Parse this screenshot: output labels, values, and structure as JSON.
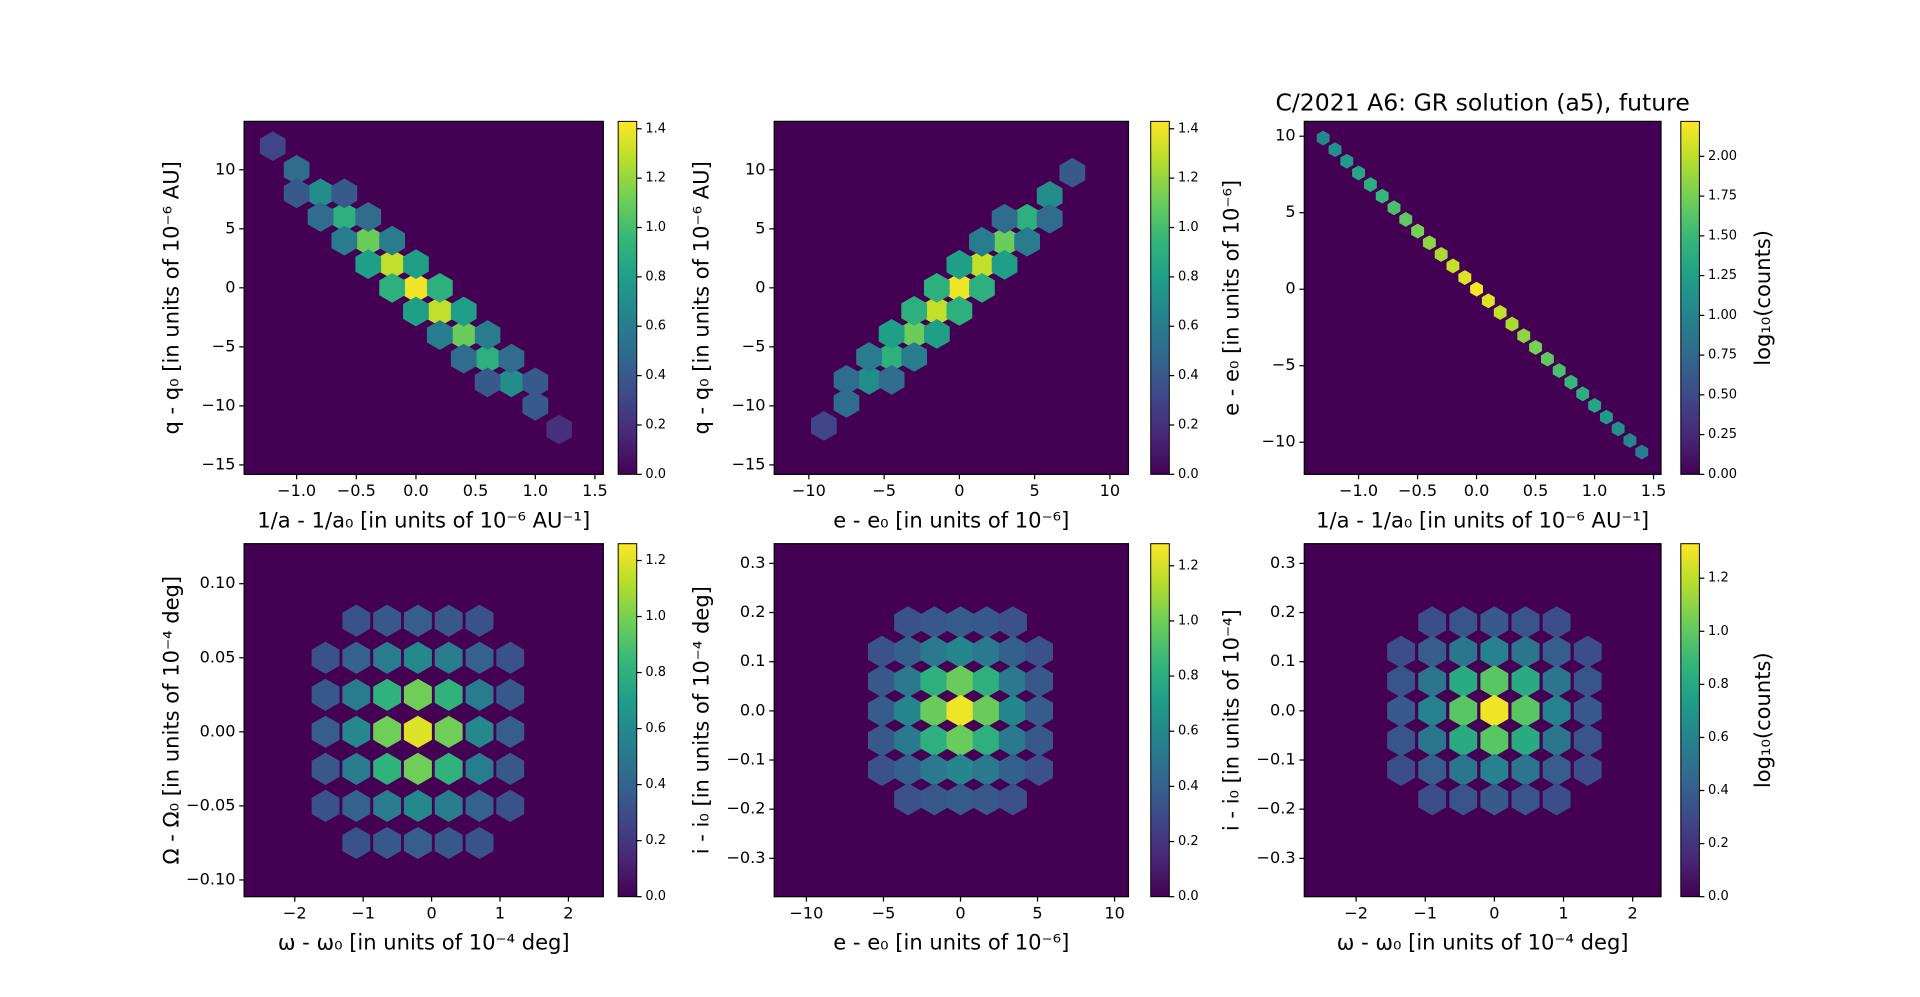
{
  "chart_data": [
    {
      "type": "hexbin",
      "xlabel": "1/a - 1/a₀ [in units of 10⁻⁶ AU⁻¹]",
      "ylabel": "q - q₀ [in units of 10⁻⁶ AU]",
      "xlim": [
        -1.44,
        1.57
      ],
      "ylim": [
        -15.8,
        14.1
      ],
      "xticks": [
        {
          "value": -1,
          "label": "−1.0"
        },
        {
          "value": -0.5,
          "label": "−0.5"
        },
        {
          "value": 0,
          "label": "0.0"
        },
        0.5,
        {
          "value": 1,
          "label": "1.0"
        },
        1.5
      ],
      "yticks": [
        {
          "value": -15,
          "label": "−15"
        },
        {
          "value": -10,
          "label": "−10"
        },
        {
          "value": -5,
          "label": "−5"
        },
        0,
        5,
        10
      ],
      "x": [
        -1.2,
        -1.0,
        -0.8,
        -0.6,
        -0.4,
        -0.2,
        0,
        0.2,
        0.4,
        0.6,
        0.8,
        1.0,
        1.2,
        -1.0,
        -0.8,
        -0.6,
        -0.4,
        -0.2,
        0,
        0.2,
        0.4,
        0.6,
        -0.6,
        -0.4,
        -0.2,
        0,
        0.2,
        0.4,
        0.6,
        0.8,
        1.0
      ],
      "y": [
        12,
        10,
        8,
        6,
        4,
        2,
        0,
        -2,
        -4,
        -6,
        -8,
        -10,
        -12,
        8,
        6,
        4,
        2,
        0,
        -2,
        -4,
        -6,
        -8,
        8,
        6,
        4,
        2,
        0,
        -2,
        -4,
        -6,
        -8
      ],
      "values": [
        0.3,
        0.5,
        0.7,
        0.9,
        1.1,
        1.3,
        1.4,
        1.3,
        1.1,
        0.9,
        0.7,
        0.4,
        0.2,
        0.4,
        0.5,
        0.6,
        0.8,
        0.9,
        0.8,
        0.6,
        0.5,
        0.4,
        0.4,
        0.5,
        0.6,
        0.8,
        0.9,
        0.8,
        0.6,
        0.5,
        0.4
      ],
      "colormap": "viridis",
      "clim": [
        0,
        1.43
      ],
      "cticks": [
        {
          "value": 0,
          "label": "0.0"
        },
        0.2,
        0.4,
        0.6,
        0.8,
        {
          "value": 1,
          "label": "1.0"
        },
        1.2,
        1.4
      ]
    },
    {
      "type": "hexbin",
      "xlabel": "e - e₀ [in units of 10⁻⁶]",
      "ylabel": "q - q₀ [in units of 10⁻⁶ AU]",
      "xlim": [
        -12.3,
        11.23
      ],
      "ylim": [
        -15.8,
        14.1
      ],
      "xticks": [
        {
          "value": -10,
          "label": "−10"
        },
        {
          "value": -5,
          "label": "−5"
        },
        0,
        5,
        10
      ],
      "yticks": [
        {
          "value": -15,
          "label": "−15"
        },
        {
          "value": -10,
          "label": "−10"
        },
        {
          "value": -5,
          "label": "−5"
        },
        0,
        5,
        10
      ],
      "x": [
        -9,
        -7.5,
        -6,
        -4.5,
        -3,
        -1.5,
        0,
        1.5,
        3,
        4.5,
        6,
        7.5,
        -7.5,
        -6,
        -4.5,
        -3,
        -1.5,
        0,
        1.5,
        3,
        -4.5,
        -3,
        -1.5,
        0,
        1.5,
        3,
        4.5,
        6
      ],
      "y": [
        -11.7,
        -9.75,
        -7.8,
        -5.85,
        -3.9,
        -1.95,
        0,
        1.95,
        3.9,
        5.85,
        7.8,
        9.75,
        -7.8,
        -5.85,
        -3.9,
        -1.95,
        0,
        1.95,
        3.9,
        5.85,
        -7.8,
        -5.85,
        -3.9,
        -1.95,
        0,
        1.95,
        3.9,
        5.85
      ],
      "values": [
        0.3,
        0.5,
        0.7,
        0.9,
        1.1,
        1.3,
        1.4,
        1.3,
        1.1,
        0.9,
        0.7,
        0.4,
        0.5,
        0.6,
        0.8,
        0.9,
        0.9,
        0.8,
        0.6,
        0.5,
        0.5,
        0.6,
        0.8,
        0.9,
        0.9,
        0.8,
        0.6,
        0.5
      ],
      "colormap": "viridis",
      "clim": [
        0,
        1.43
      ],
      "cticks": [
        {
          "value": 0,
          "label": "0.0"
        },
        0.2,
        0.4,
        0.6,
        0.8,
        {
          "value": 1,
          "label": "1.0"
        },
        1.2,
        1.4
      ]
    },
    {
      "type": "hexbin",
      "title": "C/2021 A6: GR solution (a5), future",
      "xlabel": "1/a - 1/a₀ [in units of 10⁻⁶ AU⁻¹]",
      "ylabel": "e - e₀ [in units of 10⁻⁶]",
      "xlim": [
        -1.46,
        1.563
      ],
      "ylim": [
        -12.1,
        10.97
      ],
      "xticks": [
        {
          "value": -1,
          "label": "−1.0"
        },
        {
          "value": -0.5,
          "label": "−0.5"
        },
        {
          "value": 0,
          "label": "0.0"
        },
        0.5,
        {
          "value": 1,
          "label": "1.0"
        },
        1.5
      ],
      "yticks": [
        {
          "value": -10,
          "label": "−10"
        },
        {
          "value": -5,
          "label": "−5"
        },
        0,
        5,
        10
      ],
      "x": [
        -1.3,
        -1.2,
        -1.1,
        -1.0,
        -0.9,
        -0.8,
        -0.7,
        -0.6,
        -0.5,
        -0.4,
        -0.3,
        -0.2,
        -0.1,
        0,
        0.1,
        0.2,
        0.3,
        0.4,
        0.5,
        0.6,
        0.7,
        0.8,
        0.9,
        1.0,
        1.1,
        1.2,
        1.3,
        1.4
      ],
      "y": [
        9.88,
        9.12,
        8.36,
        7.6,
        6.84,
        6.08,
        5.32,
        4.56,
        3.8,
        3.04,
        2.28,
        1.52,
        0.76,
        0,
        -0.76,
        -1.52,
        -2.28,
        -3.04,
        -3.8,
        -4.56,
        -5.32,
        -6.08,
        -6.84,
        -7.6,
        -8.36,
        -9.12,
        -9.88,
        -10.64
      ],
      "values": [
        1.03,
        1.12,
        1.21,
        1.3,
        1.39,
        1.48,
        1.57,
        1.66,
        1.75,
        1.84,
        1.93,
        2.02,
        2.11,
        2.2,
        2.11,
        2.02,
        1.93,
        1.84,
        1.75,
        1.66,
        1.57,
        1.48,
        1.39,
        1.3,
        1.21,
        1.12,
        1.03,
        0.94
      ],
      "colormap": "viridis",
      "clim": [
        0,
        2.22
      ],
      "clabel": "log₁₀(counts)",
      "cticks": [
        {
          "value": 0,
          "label": "0.00"
        },
        0.25,
        {
          "value": 0.5,
          "label": "0.50"
        },
        0.75,
        {
          "value": 1,
          "label": "1.00"
        },
        1.25,
        {
          "value": 1.5,
          "label": "1.50"
        },
        1.75,
        {
          "value": 2,
          "label": "2.00"
        }
      ]
    },
    {
      "type": "hexbin",
      "xlabel": "ω - ω₀ [in units of 10⁻⁴ deg]",
      "ylabel": "Ω - Ω₀ [in units of 10⁻⁴ deg]",
      "xlim": [
        -2.74,
        2.51
      ],
      "ylim": [
        -0.1113,
        0.127
      ],
      "xticks": [
        {
          "value": -2,
          "label": "−2"
        },
        {
          "value": -1,
          "label": "−1"
        },
        0,
        1,
        2
      ],
      "yticks": [
        {
          "value": -0.1,
          "label": "−0.10"
        },
        {
          "value": -0.05,
          "label": "−0.05"
        },
        {
          "value": 0,
          "label": "0.00"
        },
        0.05,
        {
          "value": 0.1,
          "label": "0.10"
        }
      ],
      "x": [
        -1.1,
        -0.65,
        -0.2,
        0.25,
        0.7,
        -1.55,
        -1.1,
        -0.65,
        -0.2,
        0.25,
        0.7,
        1.15,
        -1.55,
        -1.1,
        -0.65,
        -0.2,
        0.25,
        0.7,
        1.15,
        -1.55,
        -1.1,
        -0.65,
        -0.2,
        0.25,
        0.7,
        1.15,
        -1.55,
        -1.1,
        -0.65,
        -0.2,
        0.25,
        0.7,
        1.15,
        -1.55,
        -1.1,
        -0.65,
        -0.2,
        0.25,
        0.7,
        1.15,
        -1.1,
        -0.65,
        -0.2,
        0.25,
        0.7
      ],
      "y": [
        0.075,
        0.075,
        0.075,
        0.075,
        0.075,
        0.05,
        0.05,
        0.05,
        0.05,
        0.05,
        0.05,
        0.05,
        0.025,
        0.025,
        0.025,
        0.025,
        0.025,
        0.025,
        0.025,
        0,
        0,
        0,
        0,
        0,
        0,
        0,
        -0.025,
        -0.025,
        -0.025,
        -0.025,
        -0.025,
        -0.025,
        -0.025,
        -0.05,
        -0.05,
        -0.05,
        -0.05,
        -0.05,
        -0.05,
        -0.05,
        -0.075,
        -0.075,
        -0.075,
        -0.075,
        -0.075
      ],
      "values": [
        0.32,
        0.35,
        0.37,
        0.35,
        0.32,
        0.32,
        0.39,
        0.52,
        0.59,
        0.52,
        0.39,
        0.32,
        0.35,
        0.52,
        0.81,
        0.98,
        0.81,
        0.52,
        0.35,
        0.37,
        0.59,
        0.98,
        1.2,
        0.98,
        0.59,
        0.37,
        0.35,
        0.52,
        0.81,
        0.98,
        0.81,
        0.52,
        0.35,
        0.32,
        0.39,
        0.52,
        0.59,
        0.52,
        0.39,
        0.32,
        0.32,
        0.35,
        0.37,
        0.35,
        0.32
      ],
      "colormap": "viridis",
      "clim": [
        0,
        1.26
      ],
      "cticks": [
        {
          "value": 0,
          "label": "0.0"
        },
        0.2,
        0.4,
        0.6,
        0.8,
        {
          "value": 1,
          "label": "1.0"
        },
        1.2
      ]
    },
    {
      "type": "hexbin",
      "xlabel": "e - e₀ [in units of 10⁻⁶]",
      "ylabel": "i - i₀ [in units of 10⁻⁴ deg]",
      "xlim": [
        -12.09,
        10.9
      ],
      "ylim": [
        -0.378,
        0.34
      ],
      "xticks": [
        {
          "value": -10,
          "label": "−10"
        },
        {
          "value": -5,
          "label": "−5"
        },
        0,
        5,
        10
      ],
      "yticks": [
        {
          "value": -0.3,
          "label": "−0.3"
        },
        {
          "value": -0.2,
          "label": "−0.2"
        },
        {
          "value": -0.1,
          "label": "−0.1"
        },
        {
          "value": 0,
          "label": "0.0"
        },
        0.1,
        0.2,
        0.3
      ],
      "x": [
        -3.4,
        -1.7,
        0,
        1.7,
        3.4,
        -5.1,
        -3.4,
        -1.7,
        0,
        1.7,
        3.4,
        5.1,
        -5.1,
        -3.4,
        -1.7,
        0,
        1.7,
        3.4,
        5.1,
        -5.1,
        -3.4,
        -1.7,
        0,
        1.7,
        3.4,
        5.1,
        -5.1,
        -3.4,
        -1.7,
        0,
        1.7,
        3.4,
        5.1,
        -5.1,
        -3.4,
        -1.7,
        0,
        1.7,
        3.4,
        5.1,
        -3.4,
        -1.7,
        0,
        1.7,
        3.4
      ],
      "y": [
        0.18,
        0.18,
        0.18,
        0.18,
        0.18,
        0.12,
        0.12,
        0.12,
        0.12,
        0.12,
        0.12,
        0.12,
        0.06,
        0.06,
        0.06,
        0.06,
        0.06,
        0.06,
        0.06,
        0,
        0,
        0,
        0,
        0,
        0,
        0,
        -0.06,
        -0.06,
        -0.06,
        -0.06,
        -0.06,
        -0.06,
        -0.06,
        -0.12,
        -0.12,
        -0.12,
        -0.12,
        -0.12,
        -0.12,
        -0.12,
        -0.18,
        -0.18,
        -0.18,
        -0.18,
        -0.18
      ],
      "values": [
        0.32,
        0.35,
        0.37,
        0.35,
        0.32,
        0.32,
        0.39,
        0.52,
        0.59,
        0.52,
        0.39,
        0.32,
        0.35,
        0.52,
        0.81,
        0.98,
        0.81,
        0.52,
        0.35,
        0.37,
        0.59,
        0.98,
        1.25,
        0.98,
        0.59,
        0.37,
        0.35,
        0.52,
        0.81,
        0.98,
        0.81,
        0.52,
        0.35,
        0.32,
        0.39,
        0.52,
        0.59,
        0.52,
        0.39,
        0.32,
        0.32,
        0.35,
        0.37,
        0.35,
        0.32
      ],
      "colormap": "viridis",
      "clim": [
        0,
        1.28
      ],
      "cticks": [
        {
          "value": 0,
          "label": "0.0"
        },
        0.2,
        0.4,
        0.6,
        0.8,
        {
          "value": 1,
          "label": "1.0"
        },
        1.2
      ]
    },
    {
      "type": "hexbin",
      "xlabel": "ω - ω₀ [in units of 10⁻⁴ deg]",
      "ylabel": "i - i₀ [in units of 10⁻⁴]",
      "xlim": [
        -2.75,
        2.41
      ],
      "ylim": [
        -0.378,
        0.34
      ],
      "xticks": [
        {
          "value": -2,
          "label": "−2"
        },
        {
          "value": -1,
          "label": "−1"
        },
        0,
        1,
        2
      ],
      "yticks": [
        {
          "value": -0.3,
          "label": "−0.3"
        },
        {
          "value": -0.2,
          "label": "−0.2"
        },
        {
          "value": -0.1,
          "label": "−0.1"
        },
        {
          "value": 0,
          "label": "0.0"
        },
        0.1,
        0.2,
        0.3
      ],
      "x": [
        -0.9,
        -0.45,
        0,
        0.45,
        0.9,
        -1.35,
        -0.9,
        -0.45,
        0,
        0.45,
        0.9,
        1.35,
        -1.35,
        -0.9,
        -0.45,
        0,
        0.45,
        0.9,
        1.35,
        -1.35,
        -0.9,
        -0.45,
        0,
        0.45,
        0.9,
        1.35,
        -1.35,
        -0.9,
        -0.45,
        0,
        0.45,
        0.9,
        1.35,
        -1.35,
        -0.9,
        -0.45,
        0,
        0.45,
        0.9,
        1.35,
        -0.9,
        -0.45,
        0,
        0.45,
        0.9
      ],
      "y": [
        0.18,
        0.18,
        0.18,
        0.18,
        0.18,
        0.12,
        0.12,
        0.12,
        0.12,
        0.12,
        0.12,
        0.12,
        0.06,
        0.06,
        0.06,
        0.06,
        0.06,
        0.06,
        0.06,
        0,
        0,
        0,
        0,
        0,
        0,
        0,
        -0.06,
        -0.06,
        -0.06,
        -0.06,
        -0.06,
        -0.06,
        -0.06,
        -0.12,
        -0.12,
        -0.12,
        -0.12,
        -0.12,
        -0.12,
        -0.12,
        -0.18,
        -0.18,
        -0.18,
        -0.18,
        -0.18
      ],
      "values": [
        0.32,
        0.35,
        0.37,
        0.35,
        0.32,
        0.32,
        0.39,
        0.52,
        0.59,
        0.52,
        0.39,
        0.32,
        0.35,
        0.52,
        0.81,
        0.98,
        0.81,
        0.52,
        0.35,
        0.37,
        0.59,
        0.98,
        1.3,
        0.98,
        0.59,
        0.37,
        0.35,
        0.52,
        0.81,
        0.98,
        0.81,
        0.52,
        0.35,
        0.32,
        0.39,
        0.52,
        0.59,
        0.52,
        0.39,
        0.32,
        0.32,
        0.35,
        0.37,
        0.35,
        0.32
      ],
      "colormap": "viridis",
      "clim": [
        0,
        1.33
      ],
      "clabel": "log₁₀(counts)",
      "cticks": [
        {
          "value": 0,
          "label": "0.0"
        },
        0.2,
        0.4,
        0.6,
        0.8,
        {
          "value": 1,
          "label": "1.0"
        },
        1.2
      ]
    }
  ]
}
